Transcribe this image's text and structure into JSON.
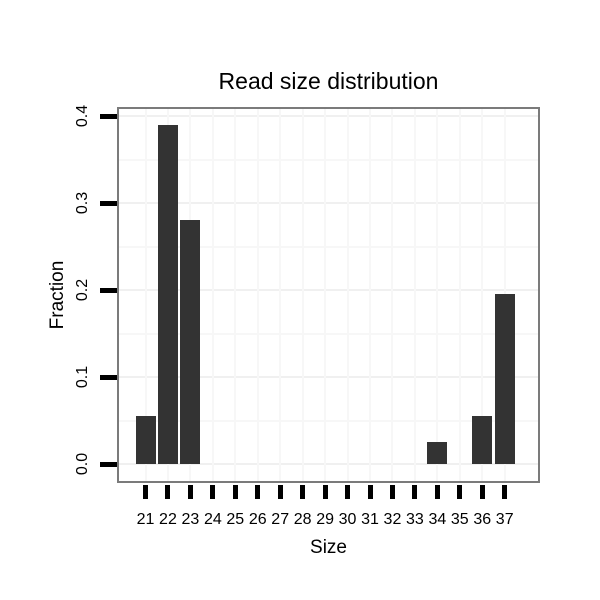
{
  "chart_data": {
    "type": "bar",
    "title": "Read size distribution",
    "xlabel": "Size",
    "ylabel": "Fraction",
    "categories": [
      "21",
      "22",
      "23",
      "24",
      "25",
      "26",
      "27",
      "28",
      "29",
      "30",
      "31",
      "32",
      "33",
      "34",
      "35",
      "36",
      "37"
    ],
    "values": [
      0.055,
      0.39,
      0.28,
      0,
      0,
      0,
      0,
      0,
      0,
      0,
      0,
      0,
      0,
      0.025,
      0,
      0.055,
      0.195
    ],
    "yticks": [
      0.0,
      0.1,
      0.2,
      0.3,
      0.4
    ],
    "ytick_labels": [
      "0.0",
      "0.1",
      "0.2",
      "0.3",
      "0.4"
    ],
    "ylim": [
      -0.02,
      0.41
    ],
    "grid": "horizontal major 0.1 steps, minor 0.05 steps, vertical line per category, all very faint",
    "legend": "none",
    "style": {
      "bar_fill": "#333333",
      "panel_border": "#7b7b7b",
      "grid_major": "#f0f0f0",
      "grid_minor": "#f7f7f7",
      "tick_color": "#000000",
      "text_color": "#000000",
      "background": "#ffffff"
    }
  }
}
